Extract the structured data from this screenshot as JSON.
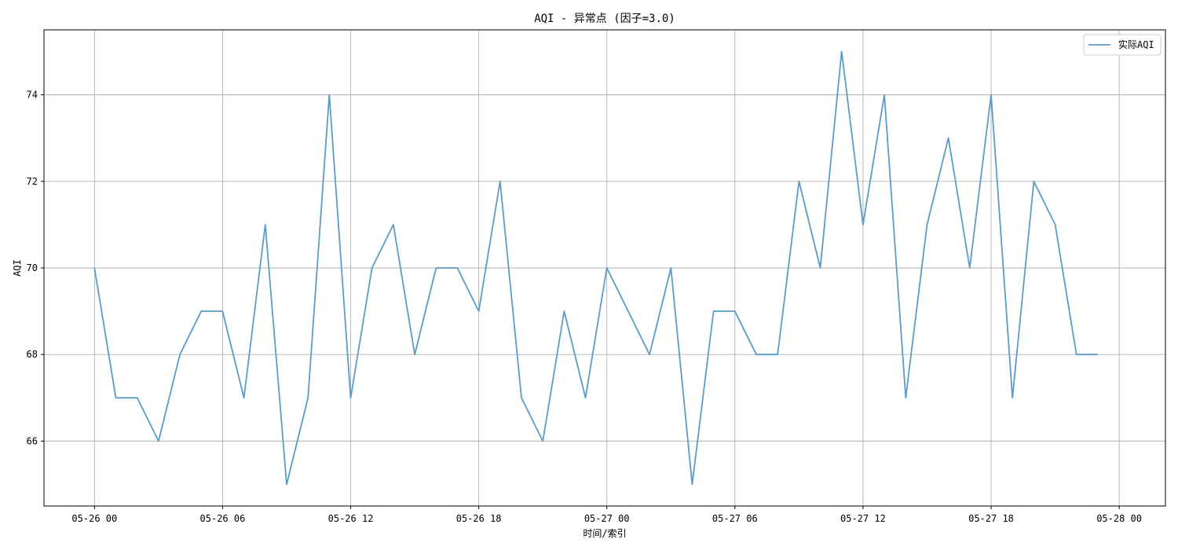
{
  "chart_data": {
    "type": "line",
    "title": "AQI - 异常点 (因子=3.0)",
    "xlabel": "时间/索引",
    "ylabel": "AQI",
    "xlim": [
      "2024-05-25T21:38",
      "2024-05-28T02:10"
    ],
    "ylim": [
      64.5,
      75.5
    ],
    "grid": true,
    "legend": "upper-right",
    "x_ticks": [
      "05-26 00",
      "05-26 06",
      "05-26 12",
      "05-26 18",
      "05-27 00",
      "05-27 06",
      "05-27 12",
      "05-27 18",
      "05-28 00"
    ],
    "y_ticks": [
      66,
      68,
      70,
      72,
      74
    ],
    "series": [
      {
        "name": "实际AQI",
        "color": "#5b9bc7",
        "x": [
          "2024-05-26T00:00",
          "2024-05-26T01:00",
          "2024-05-26T02:00",
          "2024-05-26T03:00",
          "2024-05-26T04:00",
          "2024-05-26T05:00",
          "2024-05-26T06:00",
          "2024-05-26T07:00",
          "2024-05-26T08:00",
          "2024-05-26T09:00",
          "2024-05-26T10:00",
          "2024-05-26T11:00",
          "2024-05-26T12:00",
          "2024-05-26T13:00",
          "2024-05-26T14:00",
          "2024-05-26T15:00",
          "2024-05-26T16:00",
          "2024-05-26T17:00",
          "2024-05-26T18:00",
          "2024-05-26T19:00",
          "2024-05-26T20:00",
          "2024-05-26T21:00",
          "2024-05-26T22:00",
          "2024-05-26T23:00",
          "2024-05-27T00:00",
          "2024-05-27T01:00",
          "2024-05-27T02:00",
          "2024-05-27T03:00",
          "2024-05-27T04:00",
          "2024-05-27T05:00",
          "2024-05-27T06:00",
          "2024-05-27T07:00",
          "2024-05-27T08:00",
          "2024-05-27T09:00",
          "2024-05-27T10:00",
          "2024-05-27T11:00",
          "2024-05-27T12:00",
          "2024-05-27T13:00",
          "2024-05-27T14:00",
          "2024-05-27T15:00",
          "2024-05-27T16:00",
          "2024-05-27T17:00",
          "2024-05-27T18:00",
          "2024-05-27T19:00",
          "2024-05-27T20:00",
          "2024-05-27T21:00",
          "2024-05-27T22:00",
          "2024-05-27T23:00"
        ],
        "values": [
          70,
          67,
          67,
          66,
          68,
          69,
          69,
          67,
          71,
          65,
          67,
          74,
          67,
          70,
          71,
          68,
          70,
          70,
          69,
          72,
          67,
          66,
          69,
          67,
          70,
          69,
          68,
          70,
          65,
          69,
          69,
          68,
          68,
          72,
          70,
          75,
          71,
          74,
          67,
          71,
          73,
          70,
          74,
          67,
          72,
          71,
          68,
          68
        ]
      }
    ]
  }
}
